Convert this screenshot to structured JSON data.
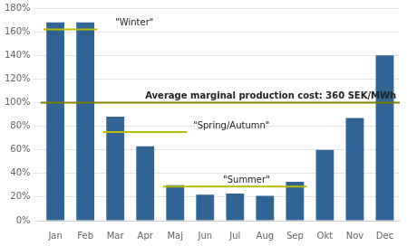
{
  "chart_data": {
    "type": "bar",
    "categories": [
      "Jan",
      "Feb",
      "Mar",
      "Apr",
      "Maj",
      "Jun",
      "Jul",
      "Aug",
      "Sep",
      "Okt",
      "Nov",
      "Dec"
    ],
    "values": [
      1.68,
      1.68,
      0.88,
      0.63,
      0.3,
      0.22,
      0.23,
      0.21,
      0.33,
      0.6,
      0.87,
      1.4
    ],
    "color": "#2E6496",
    "ylim": [
      0,
      1.8
    ],
    "yticks": [
      {
        "value": 0,
        "label": "0%"
      },
      {
        "value": 0.2,
        "label": "20%"
      },
      {
        "value": 0.4,
        "label": "40%"
      },
      {
        "value": 0.6,
        "label": "60%"
      },
      {
        "value": 0.8,
        "label": "80%"
      },
      {
        "value": 1.0,
        "label": "100%"
      },
      {
        "value": 1.2,
        "label": "120%"
      },
      {
        "value": 1.4,
        "label": "140%"
      },
      {
        "value": 1.6,
        "label": "160%"
      },
      {
        "value": 1.8,
        "label": "180%"
      }
    ],
    "grid": true,
    "lines": [
      {
        "y": 1.0,
        "from": "Jan",
        "to": "Dec",
        "color": "#808000",
        "label": "Average marginal production cost: 360 SEK/MWh"
      },
      {
        "y": 1.62,
        "from": "Jan",
        "to": "Feb",
        "color": "#BABA00",
        "label": "\"Winter\""
      },
      {
        "y": 0.75,
        "from": "Mar",
        "to": "Maj",
        "color": "#BABA00",
        "label": "\"Spring/Autumn\""
      },
      {
        "y": 0.29,
        "from": "Maj",
        "to": "Sep",
        "color": "#BABA00",
        "label": "\"Summer\""
      }
    ]
  }
}
